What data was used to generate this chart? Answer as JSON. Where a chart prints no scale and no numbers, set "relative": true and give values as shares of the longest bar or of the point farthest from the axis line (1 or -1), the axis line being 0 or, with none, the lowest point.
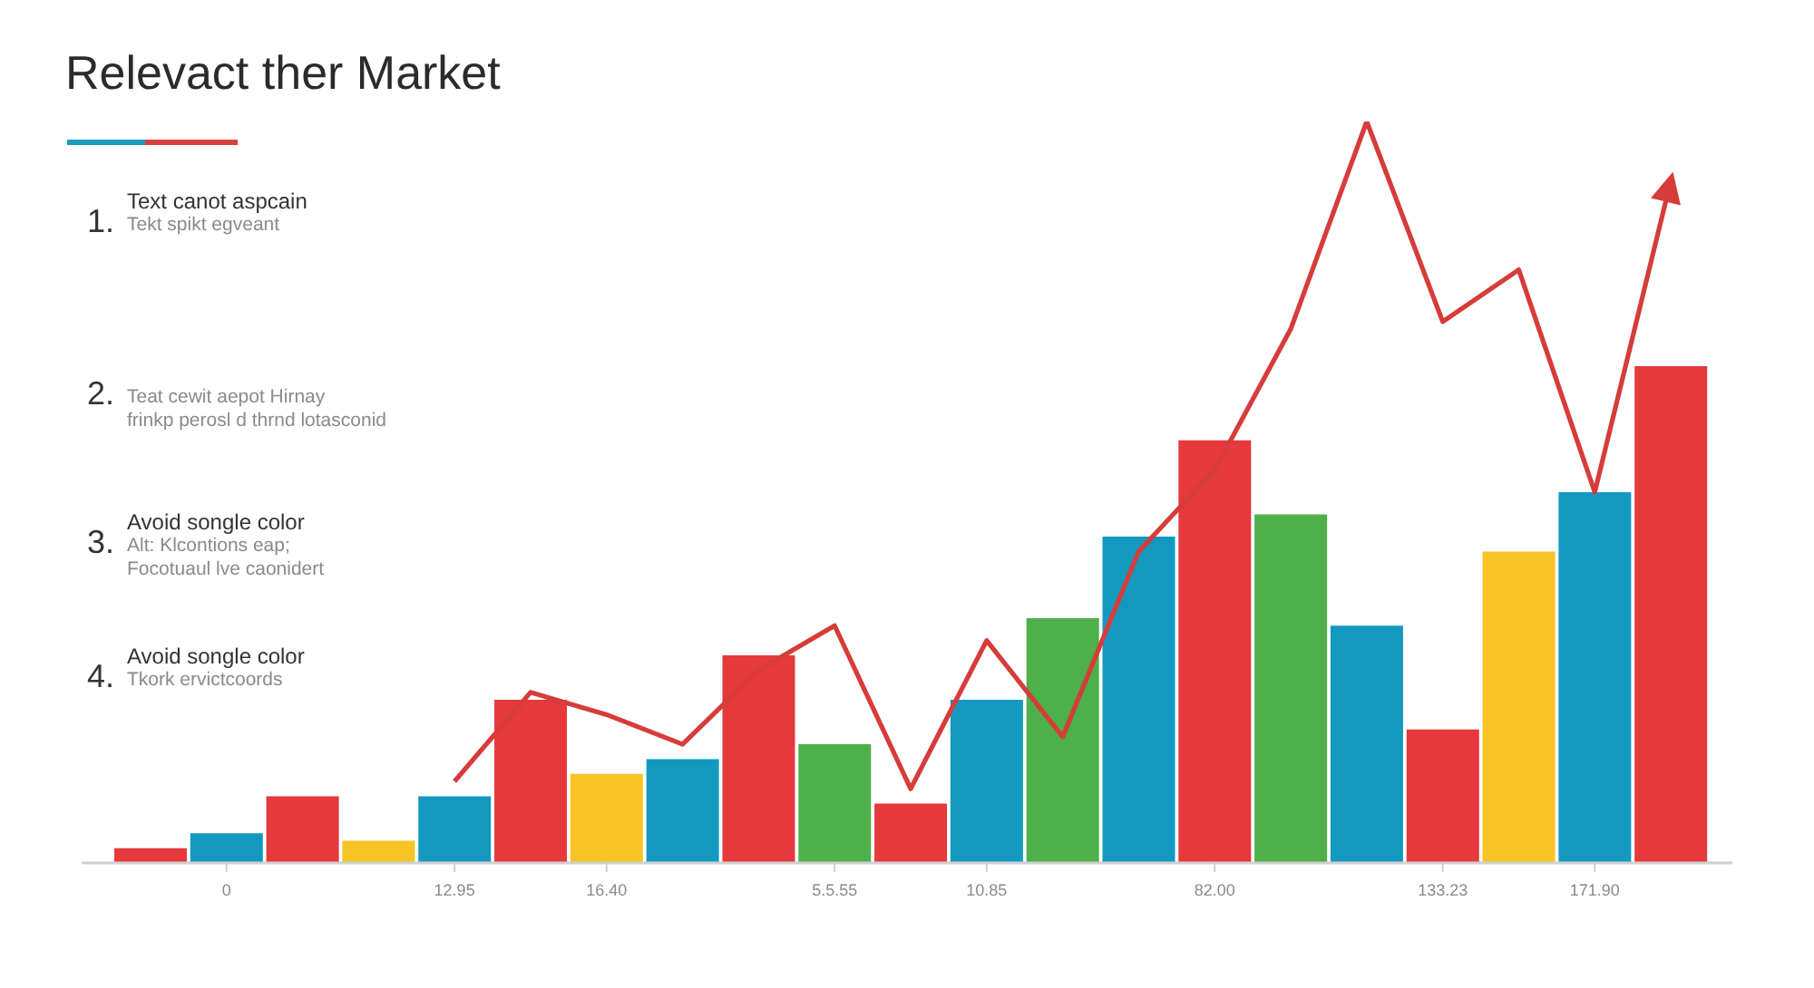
{
  "chart_data": {
    "type": "bar",
    "title": "Relevact ther Market",
    "relative": true,
    "categories": [
      null,
      "0",
      null,
      null,
      "12.95",
      null,
      "16.40",
      null,
      null,
      "5.5.55",
      null,
      "10.85",
      null,
      null,
      "82.00",
      null,
      null,
      "133.23",
      null,
      "171.90",
      null
    ],
    "series": [
      {
        "values": [
          0.02,
          0.04,
          0.09,
          0.03,
          0.09,
          0.22,
          0.12,
          0.14,
          0.28,
          0.16,
          0.08,
          0.22,
          0.33,
          0.44,
          0.57,
          0.47,
          0.32,
          0.18,
          0.42,
          0.5,
          0.67
        ],
        "colors": [
          "#e5393b",
          "#1399c0",
          "#e5393b",
          "#f8c425",
          "#1399c0",
          "#e5393b",
          "#f8c425",
          "#1399c0",
          "#e5393b",
          "#4db04a",
          "#e5393b",
          "#1399c0",
          "#4db04a",
          "#1399c0",
          "#e5393b",
          "#4db04a",
          "#1399c0",
          "#e5393b",
          "#f8c425",
          "#1399c0",
          "#e5393b"
        ]
      },
      {
        "type": "line",
        "color": "#d63c3a",
        "values": [
          null,
          null,
          null,
          null,
          0.11,
          0.23,
          0.2,
          0.16,
          0.26,
          0.32,
          0.1,
          0.3,
          0.17,
          0.42,
          0.53,
          0.72,
          1,
          0.73,
          0.8,
          0.5,
          0.92
        ]
      }
    ],
    "annotations": [
      "1.\nText canot aspcain\nTekt spikt egveant",
      "2.\n\nTeat cewit aepot Hirnay\nfrinkp perosl d thrnd lotasconid",
      "3.\nAvoid songle color\nAlt: Klcontions eap;\nFocotuaul lve caonidert",
      "4.\nAvoid songle color\nTkork ervictcoords"
    ]
  }
}
